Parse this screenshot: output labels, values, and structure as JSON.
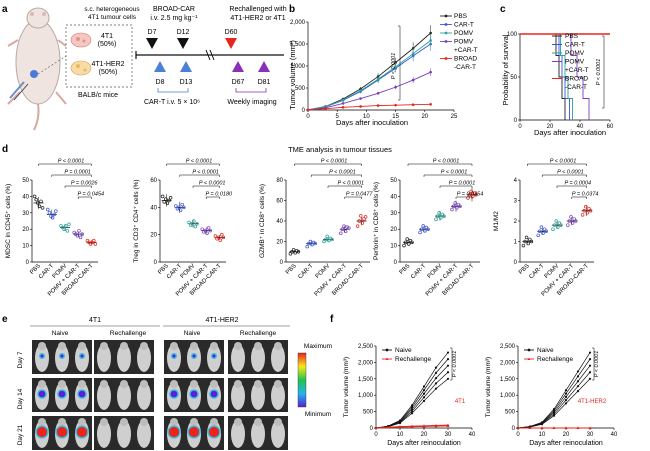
{
  "colors": {
    "pbs": "#222222",
    "cart": "#3a57d6",
    "pomv": "#27a39a",
    "pomvcart": "#7a3fc2",
    "broad": "#e8251d",
    "naive": "#111111",
    "rechallenge": "#e8251d",
    "purple": "#8b2fb8",
    "blueTri": "#4a80d6",
    "redTri": "#e8251d"
  },
  "panel_a": {
    "label": "a",
    "sc": "s.c. heterogeneous",
    "sc2": "4T1 tumour cells",
    "t1": "4T1",
    "t1p": "(50%)",
    "t2": "4T1-HER2",
    "t2p": "(50%)",
    "mice": "BALB/c mice",
    "broad": "BROAD-CAR",
    "dose": "i.v. 2.5 mg kg⁻¹",
    "rech": "Rechallenged with",
    "rech2": "4T1-HER2 or 4T1",
    "d7": "D7",
    "d12": "D12",
    "d60": "D60",
    "d8": "D8",
    "d13": "D13",
    "d67": "D67",
    "d81": "D81",
    "cart": "CAR-T  i.v.  5 × 10⁶",
    "weekly": "Weekly imaging"
  },
  "panel_b": {
    "label": "b",
    "ylabel": "Tumor volume (mm³)",
    "xlabel": "Days after inoculation",
    "yticks": [
      "0",
      "500",
      "1,000",
      "1,500",
      "2,000"
    ],
    "xticks": [
      "0",
      "5",
      "10",
      "15",
      "20",
      "25"
    ],
    "pval": "P < 0.0001",
    "legend": [
      "PBS",
      "CAR-T",
      "POMV",
      "POMV",
      "+CAR-T",
      "BROAD",
      "-CAR-T"
    ]
  },
  "panel_c": {
    "label": "c",
    "ylabel": "Probability of survival",
    "xlabel": "Days after inoculation",
    "yticks": [
      "0",
      "50",
      "100"
    ],
    "xticks": [
      "0",
      "20",
      "40",
      "60"
    ],
    "pval": "P < 0.0001",
    "legend": [
      "PBS",
      "CAR-T",
      "POMV",
      "POMV",
      "+CAR-T",
      "BROAD",
      "-CAR-T"
    ]
  },
  "panel_d": {
    "label": "d",
    "title": "TME analysis in tumour tissues",
    "groups": [
      "PBS",
      "CAR-T",
      "POMV",
      "POMV + CAR-T",
      "BROAD-CAR-T"
    ],
    "plots": [
      {
        "ylabel": "MDSC in CD45⁺ cells (%)",
        "yticks": [
          "0",
          "10",
          "20",
          "30",
          "40",
          "50"
        ],
        "p": [
          "P < 0.0001",
          "P = 0.0001",
          "P = 0.0026",
          "P = 0.0454"
        ]
      },
      {
        "ylabel": "Treg in CD3⁺ CD4⁺ cells (%)",
        "yticks": [
          "0",
          "20",
          "40",
          "60"
        ],
        "p": [
          "P < 0.0001",
          "P < 0.0001",
          "P < 0.0001",
          "P = 0.0180"
        ]
      },
      {
        "ylabel": "GZMB⁺ in CD8⁺ cells (%)",
        "yticks": [
          "0",
          "20",
          "40",
          "60",
          "80"
        ],
        "p": [
          "P < 0.0001",
          "P < 0.0001",
          "P < 0.0001",
          "P = 0.0477"
        ]
      },
      {
        "ylabel": "Perforin⁺ in CD8⁺ cells (%)",
        "yticks": [
          "0",
          "10",
          "20",
          "30",
          "40",
          "50"
        ],
        "p": [
          "P < 0.0001",
          "P < 0.0001",
          "P = 0.0001",
          "P = 0.0354"
        ]
      },
      {
        "ylabel": "M1/M2",
        "yticks": [
          "0",
          "1",
          "2",
          "3",
          "4"
        ],
        "p": [
          "P < 0.0001",
          "P < 0.0001",
          "P = 0.0004",
          "P = 0.0374"
        ]
      }
    ]
  },
  "panel_e": {
    "label": "e",
    "h1": "4T1",
    "h2": "4T1-HER2",
    "naive": "Naive",
    "rech": "Rechallenge",
    "days": [
      "Day 7",
      "Day 14",
      "Day 21"
    ],
    "max": "Maximum",
    "min": "Minimum"
  },
  "panel_f": {
    "label": "f",
    "ylabel": "Tumor volume (mm³)",
    "xlabel": "Days after reinoculation",
    "yticks": [
      "0",
      "500",
      "1,000",
      "1,500",
      "2,000",
      "2,500"
    ],
    "xticks": [
      "0",
      "10",
      "20",
      "30",
      "40"
    ],
    "legend_naive": "Naive",
    "legend_rech": "Rechallenge",
    "pval": "P < 0.0001",
    "tag1": "4T1",
    "tag2": "4T1-HER2"
  },
  "chart_data": [
    {
      "type": "line",
      "title": "",
      "xlabel": "Days after inoculation",
      "ylabel": "Tumor volume (mm³)",
      "xlim": [
        0,
        25
      ],
      "ylim": [
        0,
        2000
      ],
      "x": [
        0,
        3,
        6,
        9,
        12,
        15,
        18,
        21
      ],
      "series": [
        {
          "name": "PBS",
          "values": [
            0,
            80,
            250,
            480,
            760,
            1080,
            1400,
            1750
          ]
        },
        {
          "name": "CAR-T",
          "values": [
            0,
            70,
            220,
            420,
            680,
            950,
            1230,
            1500
          ]
        },
        {
          "name": "POMV",
          "values": [
            0,
            75,
            230,
            440,
            700,
            980,
            1280,
            1580
          ]
        },
        {
          "name": "POMV +CAR-T",
          "values": [
            0,
            50,
            150,
            260,
            380,
            520,
            680,
            860
          ]
        },
        {
          "name": "BROAD-CAR-T",
          "values": [
            0,
            30,
            60,
            80,
            100,
            110,
            120,
            130
          ]
        }
      ]
    },
    {
      "type": "line",
      "title": "",
      "xlabel": "Days after inoculation",
      "ylabel": "Probability of survival",
      "xlim": [
        0,
        60
      ],
      "ylim": [
        0,
        100
      ],
      "series": [
        {
          "name": "PBS",
          "x": [
            0,
            22,
            24,
            26,
            28,
            30
          ],
          "values": [
            100,
            100,
            75,
            50,
            25,
            0
          ]
        },
        {
          "name": "CAR-T",
          "x": [
            0,
            24,
            26,
            28,
            30,
            33
          ],
          "values": [
            100,
            100,
            75,
            50,
            25,
            0
          ]
        },
        {
          "name": "POMV",
          "x": [
            0,
            25,
            27,
            30,
            32,
            35
          ],
          "values": [
            100,
            100,
            75,
            50,
            25,
            0
          ]
        },
        {
          "name": "POMV +CAR-T",
          "x": [
            0,
            30,
            34,
            38,
            42,
            46
          ],
          "values": [
            100,
            100,
            75,
            50,
            25,
            0
          ]
        },
        {
          "name": "BROAD-CAR-T",
          "x": [
            0,
            60
          ],
          "values": [
            100,
            100
          ]
        }
      ]
    },
    {
      "type": "scatter",
      "ylabel": "MDSC in CD45⁺ cells (%)",
      "ylim": [
        0,
        50
      ],
      "categories": [
        "PBS",
        "CAR-T",
        "POMV",
        "POMV + CAR-T",
        "BROAD-CAR-T"
      ],
      "means": [
        36,
        29,
        21,
        17,
        12
      ],
      "points": [
        [
          40,
          38,
          36,
          34,
          37,
          33
        ],
        [
          32,
          30,
          28,
          27,
          29,
          31
        ],
        [
          22,
          21,
          20,
          22,
          19,
          23
        ],
        [
          18,
          17,
          16,
          19,
          15,
          17
        ],
        [
          13,
          12,
          11,
          12,
          13,
          11
        ]
      ]
    },
    {
      "type": "scatter",
      "ylabel": "Treg in CD3⁺ CD4⁺ cells (%)",
      "ylim": [
        0,
        60
      ],
      "categories": [
        "PBS",
        "CAR-T",
        "POMV",
        "POMV + CAR-T",
        "BROAD-CAR-T"
      ],
      "means": [
        45,
        40,
        28,
        23,
        18
      ],
      "points": [
        [
          48,
          44,
          46,
          43,
          45,
          47
        ],
        [
          41,
          39,
          40,
          38,
          42,
          40
        ],
        [
          29,
          27,
          28,
          30,
          26,
          28
        ],
        [
          24,
          22,
          23,
          21,
          25,
          23
        ],
        [
          19,
          17,
          18,
          16,
          20,
          18
        ]
      ]
    },
    {
      "type": "scatter",
      "ylabel": "GZMB⁺ in CD8⁺ cells (%)",
      "ylim": [
        0,
        80
      ],
      "categories": [
        "PBS",
        "CAR-T",
        "POMV",
        "POMV + CAR-T",
        "BROAD-CAR-T"
      ],
      "means": [
        10,
        18,
        22,
        32,
        40
      ],
      "points": [
        [
          8,
          10,
          12,
          9,
          11,
          10
        ],
        [
          15,
          18,
          20,
          17,
          19,
          18
        ],
        [
          20,
          22,
          25,
          21,
          23,
          22
        ],
        [
          28,
          32,
          35,
          30,
          34,
          33
        ],
        [
          35,
          40,
          45,
          38,
          42,
          44
        ]
      ]
    },
    {
      "type": "scatter",
      "ylabel": "Perforin⁺ in CD8⁺ cells (%)",
      "ylim": [
        0,
        50
      ],
      "categories": [
        "PBS",
        "CAR-T",
        "POMV",
        "POMV + CAR-T",
        "BROAD-CAR-T"
      ],
      "means": [
        12,
        20,
        28,
        34,
        41
      ],
      "points": [
        [
          10,
          12,
          14,
          11,
          13,
          12
        ],
        [
          18,
          20,
          22,
          19,
          21,
          20
        ],
        [
          26,
          28,
          30,
          27,
          29,
          28
        ],
        [
          32,
          34,
          36,
          33,
          35,
          34
        ],
        [
          39,
          41,
          43,
          40,
          42,
          41
        ]
      ]
    },
    {
      "type": "scatter",
      "ylabel": "M1/M2",
      "ylim": [
        0,
        4
      ],
      "categories": [
        "PBS",
        "CAR-T",
        "POMV",
        "POMV + CAR-T",
        "BROAD-CAR-T"
      ],
      "means": [
        1.0,
        1.5,
        1.8,
        2.0,
        2.5
      ],
      "points": [
        [
          0.8,
          1.0,
          1.2,
          0.9,
          1.1,
          1.0
        ],
        [
          1.3,
          1.5,
          1.7,
          1.4,
          1.6,
          1.5
        ],
        [
          1.6,
          1.8,
          2.0,
          1.7,
          1.9,
          1.8
        ],
        [
          1.8,
          2.0,
          2.2,
          1.9,
          2.1,
          2.0
        ],
        [
          2.3,
          2.5,
          2.7,
          2.4,
          2.6,
          2.5
        ]
      ]
    },
    {
      "type": "line",
      "xlabel": "Days after reinoculation",
      "ylabel": "Tumor volume (mm³)",
      "xlim": [
        0,
        40
      ],
      "ylim": [
        0,
        2500
      ],
      "series": [
        {
          "name": "Naive",
          "x": [
            0,
            5,
            10,
            15,
            20,
            25,
            30
          ],
          "values": [
            0,
            50,
            200,
            600,
            1100,
            1600,
            2000
          ]
        },
        {
          "name": "Rechallenge",
          "x": [
            0,
            5,
            10,
            15,
            20,
            25,
            30
          ],
          "values": [
            0,
            20,
            40,
            50,
            60,
            70,
            80
          ]
        }
      ]
    },
    {
      "type": "line",
      "xlabel": "Days after reinoculation",
      "ylabel": "Tumor volume (mm³)",
      "xlim": [
        0,
        40
      ],
      "ylim": [
        0,
        2500
      ],
      "series": [
        {
          "name": "Naive",
          "x": [
            0,
            5,
            10,
            15,
            20,
            25,
            30
          ],
          "values": [
            0,
            40,
            150,
            500,
            1000,
            1500,
            2000
          ]
        },
        {
          "name": "Rechallenge",
          "x": [
            0,
            5,
            10,
            15,
            20,
            25,
            30
          ],
          "values": [
            0,
            0,
            0,
            0,
            0,
            0,
            0
          ]
        }
      ]
    }
  ]
}
